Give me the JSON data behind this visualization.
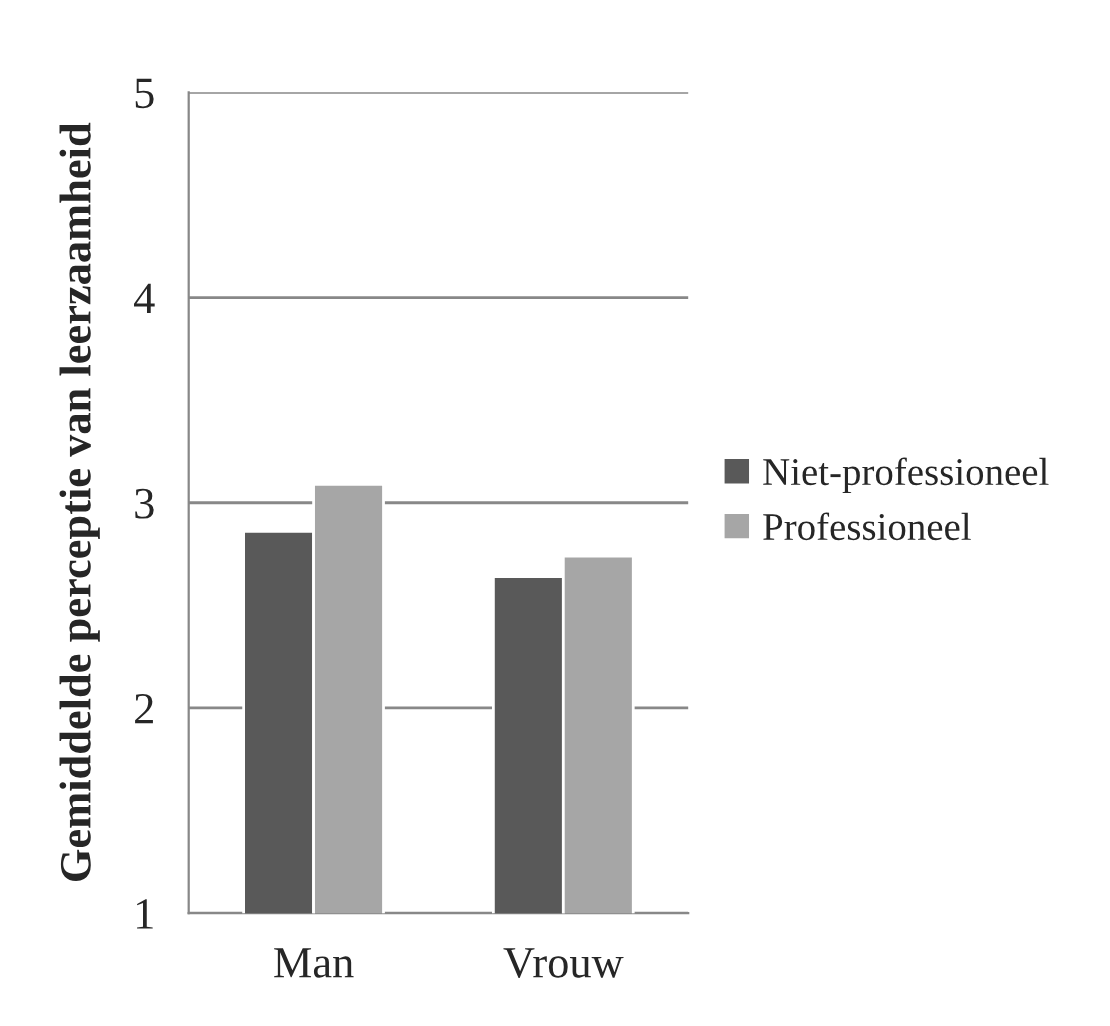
{
  "chart_data": {
    "type": "bar",
    "ylabel": "Gemiddelde perceptie van leerzaamheid",
    "categories": [
      "Man",
      "Vrouw"
    ],
    "series": [
      {
        "name": "Niet-professioneel",
        "color": "#595959",
        "values": [
          2.86,
          2.64
        ]
      },
      {
        "name": "Professioneel",
        "color": "#a6a6a6",
        "values": [
          3.09,
          2.74
        ]
      }
    ],
    "ylim": [
      1,
      5
    ],
    "yticks": [
      1,
      2,
      3,
      4,
      5
    ],
    "grid": "y",
    "legend": "right"
  }
}
